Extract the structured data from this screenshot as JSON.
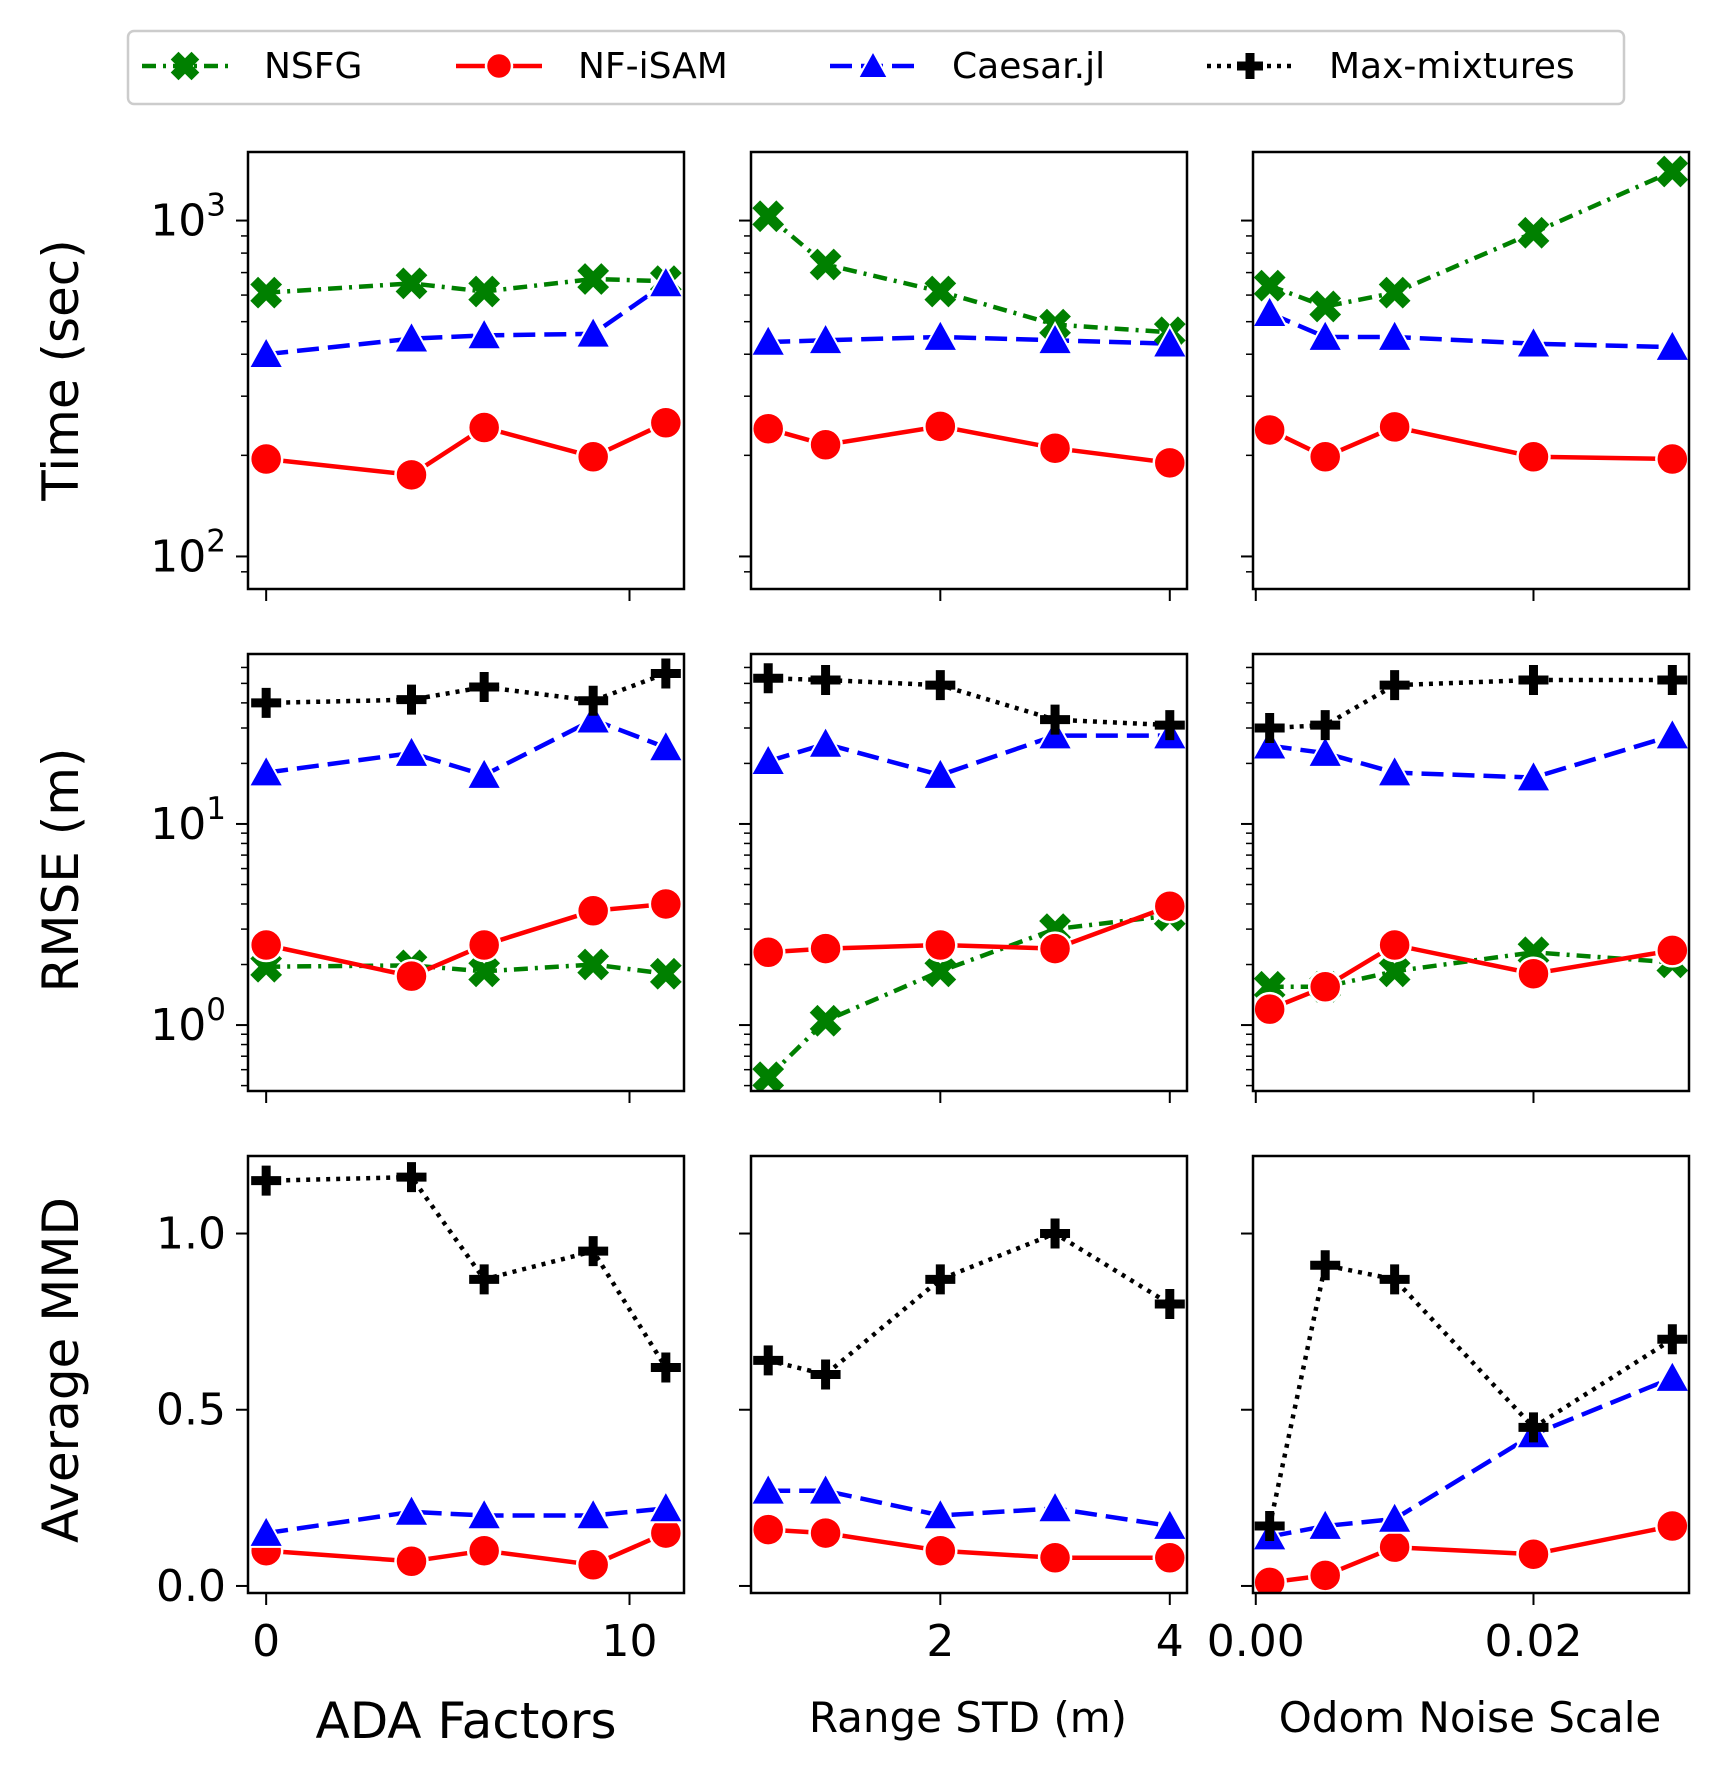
{
  "legend": [
    {
      "name": "NSFG",
      "color": "#008000",
      "marker": "x",
      "dash": "dashdot"
    },
    {
      "name": "NF-iSAM",
      "color": "#ff0000",
      "marker": "circle",
      "dash": "solid"
    },
    {
      "name": "Caesar.jl",
      "color": "#0000ff",
      "marker": "triangle",
      "dash": "dashed"
    },
    {
      "name": "Max-mixtures",
      "color": "#000000",
      "marker": "plus",
      "dash": "dotted"
    }
  ],
  "ylabels": [
    "Time (sec)",
    "RMSE (m)",
    "Average MMD"
  ],
  "xlabels": [
    "ADA Factors",
    "Range STD (m)",
    "Odom Noise Scale"
  ],
  "row_ticks": [
    [
      {
        "value": 1000,
        "mant": "10",
        "exp": "3"
      },
      {
        "value": 100,
        "mant": "10",
        "exp": "2"
      }
    ],
    [
      {
        "value": 10,
        "mant": "10",
        "exp": "1"
      },
      {
        "value": 1,
        "mant": "10",
        "exp": "0"
      }
    ],
    [
      {
        "value": 1.0,
        "label": "1.0"
      },
      {
        "value": 0.5,
        "label": "0.5"
      },
      {
        "value": 0.0,
        "label": "0.0"
      }
    ]
  ],
  "col_ticks": [
    [
      {
        "value": 0,
        "label": "0"
      },
      {
        "value": 10,
        "label": "10"
      }
    ],
    [
      {
        "value": 2,
        "label": "2"
      },
      {
        "value": 4,
        "label": "4"
      }
    ],
    [
      {
        "value": 0.0,
        "label": "0.00"
      },
      {
        "value": 0.02,
        "label": "0.02"
      }
    ]
  ],
  "chart_data": [
    {
      "type": "line",
      "row": 0,
      "col": 0,
      "yscale": "log",
      "ylim": [
        80,
        1600
      ],
      "xlim": [
        -0.5,
        11.5
      ],
      "series": [
        {
          "name": "NSFG",
          "x": [
            0,
            4,
            6,
            9,
            11
          ],
          "values": [
            610,
            650,
            615,
            670,
            660
          ]
        },
        {
          "name": "NF-iSAM",
          "x": [
            0,
            4,
            6,
            9,
            11
          ],
          "values": [
            195,
            175,
            242,
            198,
            250
          ]
        },
        {
          "name": "Caesar.jl",
          "x": [
            0,
            4,
            6,
            9,
            11
          ],
          "values": [
            400,
            445,
            455,
            460,
            650
          ]
        }
      ]
    },
    {
      "type": "line",
      "row": 0,
      "col": 1,
      "yscale": "log",
      "ylim": [
        80,
        1600
      ],
      "xlim": [
        0.35,
        4.15
      ],
      "series": [
        {
          "name": "NSFG",
          "x": [
            0.5,
            1,
            2,
            3,
            4
          ],
          "values": [
            1030,
            740,
            615,
            490,
            465
          ]
        },
        {
          "name": "NF-iSAM",
          "x": [
            0.5,
            1,
            2,
            3,
            4
          ],
          "values": [
            240,
            215,
            244,
            210,
            190
          ]
        },
        {
          "name": "Caesar.jl",
          "x": [
            0.5,
            1,
            2,
            3,
            4
          ],
          "values": [
            435,
            440,
            450,
            440,
            430
          ]
        }
      ]
    },
    {
      "type": "line",
      "row": 0,
      "col": 2,
      "yscale": "log",
      "ylim": [
        80,
        1600
      ],
      "xlim": [
        -0.0002,
        0.0312
      ],
      "series": [
        {
          "name": "NSFG",
          "x": [
            0.001,
            0.005,
            0.01,
            0.02,
            0.03
          ],
          "values": [
            640,
            555,
            610,
            920,
            1400
          ]
        },
        {
          "name": "NF-iSAM",
          "x": [
            0.001,
            0.005,
            0.01,
            0.02,
            0.03
          ],
          "values": [
            238,
            198,
            243,
            198,
            195
          ]
        },
        {
          "name": "Caesar.jl",
          "x": [
            0.001,
            0.005,
            0.01,
            0.02,
            0.03
          ],
          "values": [
            530,
            450,
            450,
            430,
            420
          ]
        }
      ]
    },
    {
      "type": "line",
      "row": 1,
      "col": 0,
      "yscale": "log",
      "ylim": [
        0.47,
        70
      ],
      "xlim": [
        -0.5,
        11.5
      ],
      "series": [
        {
          "name": "NSFG",
          "x": [
            0,
            4,
            6,
            9,
            11
          ],
          "values": [
            1.95,
            1.98,
            1.85,
            2.0,
            1.8
          ]
        },
        {
          "name": "NF-iSAM",
          "x": [
            0,
            4,
            6,
            9,
            11
          ],
          "values": [
            2.5,
            1.75,
            2.5,
            3.7,
            4.0
          ]
        },
        {
          "name": "Caesar.jl",
          "x": [
            0,
            4,
            6,
            9,
            11
          ],
          "values": [
            18,
            22.5,
            17.5,
            33,
            24
          ]
        },
        {
          "name": "Max-mixtures",
          "x": [
            0,
            4,
            6,
            9,
            11
          ],
          "values": [
            40,
            41.5,
            48,
            41,
            56
          ]
        }
      ]
    },
    {
      "type": "line",
      "row": 1,
      "col": 1,
      "yscale": "log",
      "ylim": [
        0.47,
        70
      ],
      "xlim": [
        0.35,
        4.15
      ],
      "series": [
        {
          "name": "NSFG",
          "x": [
            0.5,
            1,
            2,
            3,
            4
          ],
          "values": [
            0.55,
            1.05,
            1.85,
            3.0,
            3.5
          ]
        },
        {
          "name": "NF-iSAM",
          "x": [
            0.5,
            1,
            2,
            3,
            4
          ],
          "values": [
            2.3,
            2.4,
            2.5,
            2.4,
            3.9
          ]
        },
        {
          "name": "Caesar.jl",
          "x": [
            0.5,
            1,
            2,
            3,
            4
          ],
          "values": [
            20.5,
            25,
            17.5,
            27.5,
            27.5
          ]
        },
        {
          "name": "Max-mixtures",
          "x": [
            0.5,
            1,
            2,
            3,
            4
          ],
          "values": [
            53,
            52,
            49,
            33,
            31
          ]
        }
      ]
    },
    {
      "type": "line",
      "row": 1,
      "col": 2,
      "yscale": "log",
      "ylim": [
        0.47,
        70
      ],
      "xlim": [
        -0.0002,
        0.0312
      ],
      "series": [
        {
          "name": "NSFG",
          "x": [
            0.001,
            0.005,
            0.01,
            0.02,
            0.03
          ],
          "values": [
            1.55,
            1.55,
            1.85,
            2.3,
            2.05
          ]
        },
        {
          "name": "NF-iSAM",
          "x": [
            0.001,
            0.005,
            0.01,
            0.02,
            0.03
          ],
          "values": [
            1.2,
            1.55,
            2.5,
            1.8,
            2.35
          ]
        },
        {
          "name": "Caesar.jl",
          "x": [
            0.001,
            0.005,
            0.01,
            0.02,
            0.03
          ],
          "values": [
            24.5,
            22.5,
            18,
            17,
            27.5
          ]
        },
        {
          "name": "Max-mixtures",
          "x": [
            0.001,
            0.005,
            0.01,
            0.02,
            0.03
          ],
          "values": [
            30,
            31,
            49,
            52,
            52
          ]
        }
      ]
    },
    {
      "type": "line",
      "row": 2,
      "col": 0,
      "yscale": "linear",
      "ylim": [
        -0.02,
        1.22
      ],
      "xlim": [
        -0.5,
        11.5
      ],
      "series": [
        {
          "name": "NF-iSAM",
          "x": [
            0,
            4,
            6,
            9,
            11
          ],
          "values": [
            0.1,
            0.07,
            0.1,
            0.06,
            0.15
          ]
        },
        {
          "name": "Caesar.jl",
          "x": [
            0,
            4,
            6,
            9,
            11
          ],
          "values": [
            0.15,
            0.21,
            0.2,
            0.2,
            0.22
          ]
        },
        {
          "name": "Max-mixtures",
          "x": [
            0,
            4,
            6,
            9,
            11
          ],
          "values": [
            1.15,
            1.16,
            0.87,
            0.95,
            0.62
          ]
        }
      ]
    },
    {
      "type": "line",
      "row": 2,
      "col": 1,
      "yscale": "linear",
      "ylim": [
        -0.02,
        1.22
      ],
      "xlim": [
        0.35,
        4.15
      ],
      "series": [
        {
          "name": "NF-iSAM",
          "x": [
            0.5,
            1,
            2,
            3,
            4
          ],
          "values": [
            0.16,
            0.15,
            0.1,
            0.08,
            0.08
          ]
        },
        {
          "name": "Caesar.jl",
          "x": [
            0.5,
            1,
            2,
            3,
            4
          ],
          "values": [
            0.27,
            0.27,
            0.2,
            0.22,
            0.17
          ]
        },
        {
          "name": "Max-mixtures",
          "x": [
            0.5,
            1,
            2,
            3,
            4
          ],
          "values": [
            0.64,
            0.6,
            0.87,
            1.0,
            0.8
          ]
        }
      ]
    },
    {
      "type": "line",
      "row": 2,
      "col": 2,
      "yscale": "linear",
      "ylim": [
        -0.02,
        1.22
      ],
      "xlim": [
        -0.0002,
        0.0312
      ],
      "series": [
        {
          "name": "NF-iSAM",
          "x": [
            0.001,
            0.005,
            0.01,
            0.02,
            0.03
          ],
          "values": [
            0.01,
            0.03,
            0.11,
            0.09,
            0.17
          ]
        },
        {
          "name": "Caesar.jl",
          "x": [
            0.001,
            0.005,
            0.01,
            0.02,
            0.03
          ],
          "values": [
            0.14,
            0.17,
            0.19,
            0.43,
            0.59
          ]
        },
        {
          "name": "Max-mixtures",
          "x": [
            0.001,
            0.005,
            0.01,
            0.02,
            0.03
          ],
          "values": [
            0.17,
            0.91,
            0.87,
            0.45,
            0.7
          ]
        }
      ]
    }
  ]
}
